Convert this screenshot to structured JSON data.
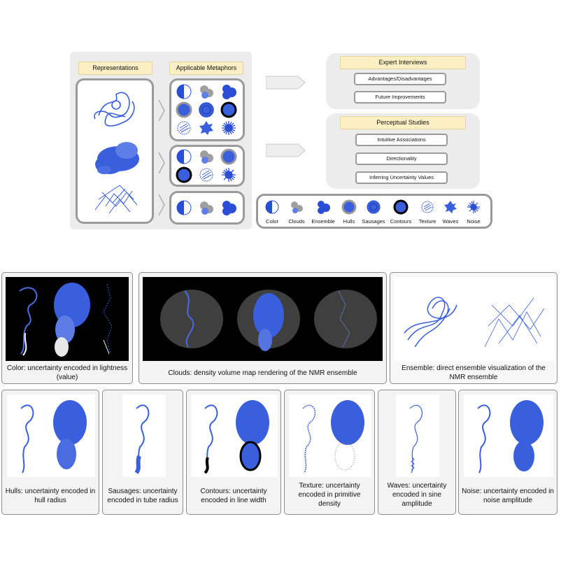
{
  "top": {
    "representations_label": "Representations",
    "metaphors_label": "Applicable Metaphors",
    "expert_interviews": {
      "title": "Expert Interviews",
      "items": [
        "Advantages/Disadvantages",
        "Future Improvements"
      ]
    },
    "perceptual_studies": {
      "title": "Perceptual Studies",
      "items": [
        "Intuitive Associations",
        "Directionality",
        "Inferring Uncertainty Values"
      ]
    },
    "legend": [
      "Color",
      "Clouds",
      "Ensemble",
      "Hulls",
      "Sausages",
      "Contours",
      "Texture",
      "Waves",
      "Noise"
    ]
  },
  "cards": {
    "color": "Color: uncertainty encoded in lightness (value)",
    "clouds": "Clouds: density volume map rendering of the NMR ensemble",
    "ensemble": "Ensemble: direct ensemble visualization of the NMR ensemble",
    "hulls": "Hulls: uncertainty encoded in hull radius",
    "sausages": "Sausages: uncertainty encoded in tube radius",
    "contours": "Contours: uncertainty encoded in line width",
    "texture": "Texture: uncertainty encoded in primitive density",
    "waves": "Waves: uncertainty encoded in sine amplitude",
    "noise": "Noise: uncertainty encoded in noise amplitude"
  },
  "colors": {
    "blue": "#3a5fdc",
    "dark_blue": "#1e3aa8",
    "panel": "#ececec",
    "yellow": "#fdefc4"
  }
}
